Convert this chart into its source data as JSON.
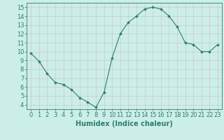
{
  "x": [
    0,
    1,
    2,
    3,
    4,
    5,
    6,
    7,
    8,
    9,
    10,
    11,
    12,
    13,
    14,
    15,
    16,
    17,
    18,
    19,
    20,
    21,
    22,
    23
  ],
  "y": [
    9.8,
    8.9,
    7.5,
    6.5,
    6.3,
    5.7,
    4.8,
    4.3,
    3.7,
    5.4,
    9.3,
    12.0,
    13.3,
    14.0,
    14.8,
    15.0,
    14.8,
    14.0,
    12.8,
    11.0,
    10.8,
    10.0,
    10.0,
    10.8
  ],
  "line_color": "#2e7d6e",
  "marker": "D",
  "marker_size": 2,
  "bg_color": "#cceee8",
  "grid_color": "#aacccc",
  "xlabel": "Humidex (Indice chaleur)",
  "xlabel_fontsize": 7,
  "ylabel_ticks": [
    4,
    5,
    6,
    7,
    8,
    9,
    10,
    11,
    12,
    13,
    14,
    15
  ],
  "xlim": [
    -0.5,
    23.5
  ],
  "ylim": [
    3.5,
    15.5
  ],
  "tick_fontsize": 6,
  "axis_color": "#2e7d6e"
}
